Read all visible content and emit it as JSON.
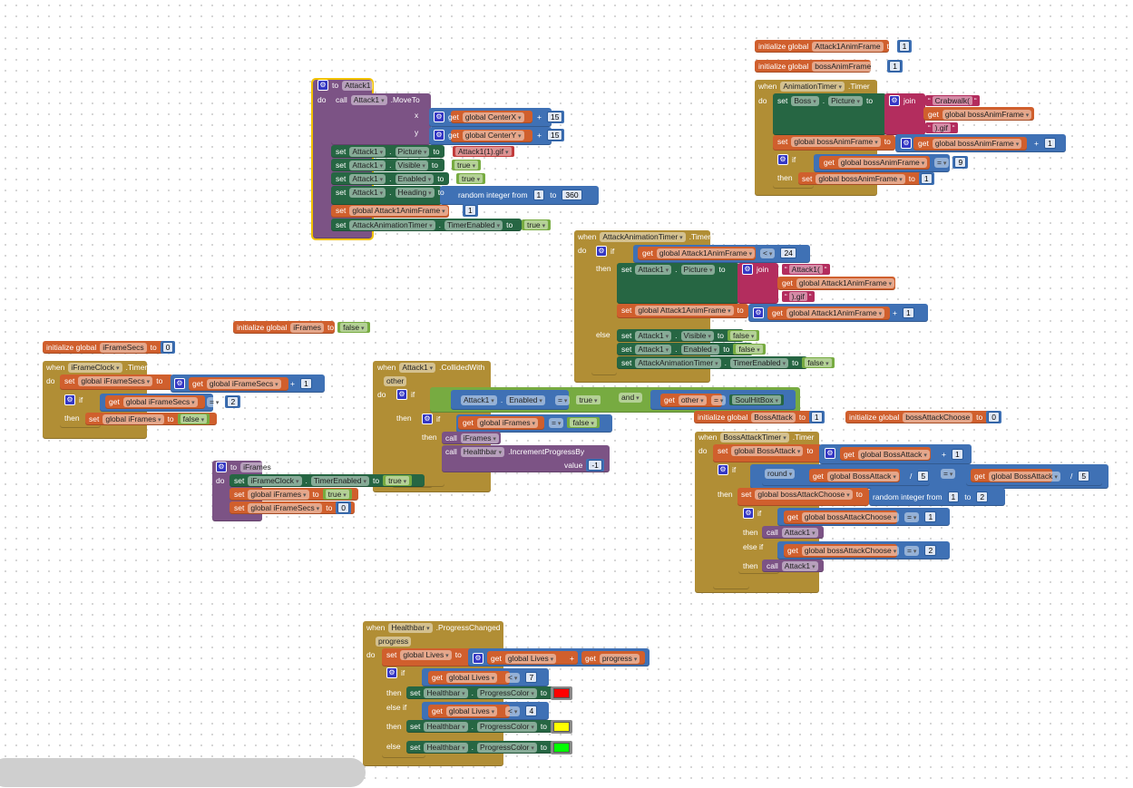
{
  "palette": {
    "event": "#b18e35",
    "procedure": "#7c5385",
    "variable": "#d05f2d",
    "math": "#3f71b5",
    "component": "#266643",
    "logic": "#77ab41",
    "text": "#b32d5e",
    "media": "#c23b3b",
    "selection": "#f2c200"
  },
  "blocks": {
    "procAttack1": [
      [
        "to",
        "Attack1"
      ],
      [
        "do"
      ],
      [
        "call",
        "Attack1",
        ".MoveTo"
      ],
      [
        "x"
      ],
      [
        "get",
        "global CenterX"
      ],
      [
        "+",
        "15"
      ],
      [
        "y"
      ],
      [
        "get",
        "global CenterY"
      ],
      [
        "+",
        "15"
      ],
      [
        "set",
        "Attack1",
        ".",
        "Picture",
        "to"
      ],
      [
        "Attack1(1).gif"
      ],
      [
        "set",
        "Attack1",
        ".",
        "Visible",
        "to"
      ],
      [
        "true"
      ],
      [
        "set",
        "Attack1",
        ".",
        "Enabled",
        "to"
      ],
      [
        "true"
      ],
      [
        "set",
        "Attack1",
        ".",
        "Heading",
        "to"
      ],
      [
        "random integer from",
        "1",
        "to",
        "360"
      ],
      [
        "set",
        "global Attack1AnimFrame",
        "to"
      ],
      [
        "1"
      ],
      [
        "set",
        "AttackAnimationTimer",
        ".",
        "TimerEnabled",
        "to"
      ],
      [
        "true"
      ]
    ],
    "initAttack1AnimFrame": [
      [
        "initialize global",
        "Attack1AnimFrame",
        "to",
        "1"
      ]
    ],
    "initBossAnimFrame": [
      [
        "initialize global",
        "bossAnimFrame",
        "to",
        "1"
      ]
    ],
    "animationTimer": [
      [
        "when",
        "AnimationTimer",
        ".Timer"
      ],
      [
        "do"
      ],
      [
        "set",
        "Boss",
        ".",
        "Picture",
        "to"
      ],
      [
        "join"
      ],
      [
        "Crabwalk("
      ],
      [
        "get",
        "global bossAnimFrame"
      ],
      [
        ").gif"
      ],
      [
        "set",
        "global bossAnimFrame",
        "to"
      ],
      [],
      [
        "get",
        "global bossAnimFrame"
      ],
      [
        "+",
        "1"
      ],
      [
        "if"
      ],
      [
        "get",
        "global bossAnimFrame"
      ],
      [
        "=",
        "9"
      ],
      [
        "then"
      ],
      [
        "set",
        "global bossAnimFrame",
        "to",
        "1"
      ]
    ],
    "attackAnimTimer": [
      [
        "when",
        "AttackAnimationTimer",
        ".Timer"
      ],
      [
        "do"
      ],
      [
        "if"
      ],
      [
        "get",
        "global Attack1AnimFrame"
      ],
      [
        "<",
        "24"
      ],
      [
        "then"
      ],
      [
        "set",
        "Attack1",
        ".",
        "Picture",
        "to"
      ],
      [
        "join"
      ],
      [
        "Attack1("
      ],
      [
        "get",
        "global Attack1AnimFrame"
      ],
      [
        ").gif"
      ],
      [
        "set",
        "global Attack1AnimFrame",
        "to"
      ],
      [],
      [
        "get",
        "global Attack1AnimFrame"
      ],
      [
        "+",
        "1"
      ],
      [
        "else"
      ],
      [
        "set",
        "Attack1",
        ".",
        "Visible",
        "to",
        "false"
      ],
      [
        "set",
        "Attack1",
        ".",
        "Enabled",
        "to",
        "false"
      ],
      [
        "set",
        "AttackAnimationTimer",
        ".",
        "TimerEnabled",
        "to",
        "false"
      ]
    ],
    "initIFrames": [
      [
        "initialize global",
        "iFrames",
        "to",
        "false"
      ]
    ],
    "initIFrameSecs": [
      [
        "initialize global",
        "iFrameSecs",
        "to",
        "0"
      ]
    ],
    "iFrameClockTimer": [
      [
        "when",
        "iFrameClock",
        ".Timer"
      ],
      [
        "do"
      ],
      [
        "set",
        "global iFrameSecs",
        "to"
      ],
      [],
      [
        "get",
        "global iFrameSecs"
      ],
      [
        "+",
        "1"
      ],
      [
        "if"
      ],
      [
        "get",
        "global iFrameSecs"
      ],
      [
        "=",
        "2"
      ],
      [
        "then"
      ],
      [
        "set",
        "global iFrames",
        "to",
        "false"
      ]
    ],
    "procIFrames": [
      [
        "to",
        "iFrames"
      ],
      [
        "do"
      ],
      [
        "set",
        "iFrameClock",
        ".",
        "TimerEnabled",
        "to",
        "true"
      ],
      [
        "set",
        "global iFrames",
        "to",
        "true"
      ],
      [
        "set",
        "global iFrameSecs",
        "to",
        "0"
      ]
    ],
    "collidedWith": [
      [
        "when",
        "Attack1",
        ".CollidedWith"
      ],
      [
        "other"
      ],
      [
        "do"
      ],
      [
        "if"
      ],
      [
        "Attack1",
        ".",
        "Enabled"
      ],
      [
        "=",
        "true"
      ],
      [
        "and"
      ],
      [
        "get",
        "other"
      ],
      [
        "=",
        "SoulHitBox"
      ],
      [
        "then"
      ],
      [
        "if"
      ],
      [
        "get",
        "global iFrames"
      ],
      [
        "=",
        "false"
      ],
      [
        "then"
      ],
      [
        "call",
        "iFrames"
      ],
      [
        "call",
        "Healthbar",
        ".IncrementProgressBy"
      ],
      [
        "value",
        "-1"
      ]
    ],
    "initBossAttack": [
      [
        "initialize global",
        "BossAttack",
        "to",
        "1"
      ]
    ],
    "initBossAttackChoose": [
      [
        "initialize global",
        "bossAttackChoose",
        "to",
        "0"
      ]
    ],
    "bossAttackTimer": [
      [
        "when",
        "BossAttackTimer",
        ".Timer"
      ],
      [
        "do"
      ],
      [
        "set",
        "global BossAttack",
        "to"
      ],
      [],
      [
        "get",
        "global BossAttack"
      ],
      [
        "+",
        "1"
      ],
      [
        "if"
      ],
      [
        "round"
      ],
      [
        "get",
        "global BossAttack"
      ],
      [
        "/",
        "5"
      ],
      [
        "="
      ],
      [
        "get",
        "global BossAttack"
      ],
      [
        "/",
        "5"
      ],
      [
        "then"
      ],
      [
        "set",
        "global bossAttackChoose",
        "to"
      ],
      [
        "random integer from",
        "1",
        "to",
        "2"
      ],
      [
        "if"
      ],
      [
        "get",
        "global bossAttackChoose"
      ],
      [
        "=",
        "1"
      ],
      [
        "then"
      ],
      [
        "call",
        "Attack1"
      ],
      [
        "else if"
      ],
      [
        "get",
        "global bossAttackChoose"
      ],
      [
        "=",
        "2"
      ],
      [
        "then"
      ],
      [
        "call",
        "Attack1"
      ]
    ],
    "progressChanged": [
      [
        "when",
        "Healthbar",
        ".ProgressChanged"
      ],
      [
        "progress"
      ],
      [
        "do"
      ],
      [
        "set",
        "global Lives",
        "to"
      ],
      [],
      [
        "get",
        "global Lives"
      ],
      [
        "+"
      ],
      [
        "get",
        "progress"
      ],
      [
        "if"
      ],
      [
        "get",
        "global Lives"
      ],
      [
        "<",
        "7"
      ],
      [
        "then"
      ],
      [
        "set",
        "Healthbar",
        ".",
        "ProgressColor",
        "to",
        "#ff0000"
      ],
      [
        "else if"
      ],
      [
        "get",
        "global Lives"
      ],
      [
        "<",
        "4"
      ],
      [
        "then"
      ],
      [
        "set",
        "Healthbar",
        ".",
        "ProgressColor",
        "to",
        "#ffff00"
      ],
      [
        "else"
      ],
      [
        "set",
        "Healthbar",
        ".",
        "ProgressColor",
        "to",
        "#00ff00"
      ]
    ]
  }
}
